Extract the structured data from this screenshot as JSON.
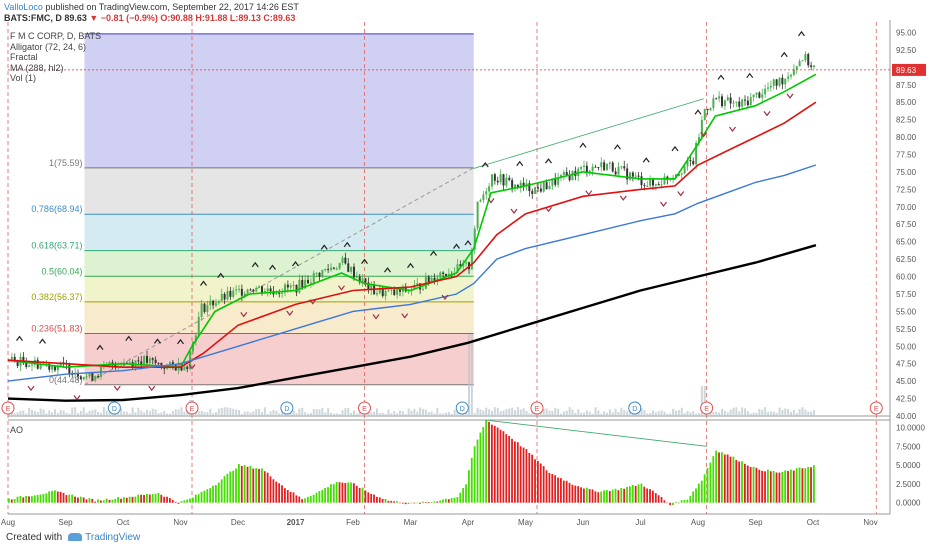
{
  "header": {
    "author": "ValloLoco",
    "published_text": "published on TradingView.com, September 22, 2017 14:26 EST",
    "symbol": "BATS:FMC, D",
    "last": "89.63",
    "change": "▼ −0.81 (−0.9%)",
    "ohlc": "O:90.88 H:91.88 L:89.13 C:89.63"
  },
  "legend": {
    "symbol_line": "F M C CORP, D, BATS",
    "studies": [
      "Alligator (72, 24, 6)",
      "Fractal",
      "MA (288, hl2)",
      "Vol (1)"
    ]
  },
  "ao_label": "AO",
  "footer": {
    "created_with": "Created with",
    "brand": "TradingView"
  },
  "colors": {
    "candle_up": "#4caf50",
    "candle_down": "#333333",
    "lips": "#00c800",
    "teeth": "#e01010",
    "jaw": "#3c78d8",
    "ma": "#000000",
    "ao_up": "#44dd00",
    "ao_down": "#e02020",
    "price_tag": "#e03030"
  },
  "chart_data": [
    {
      "type": "candlestick",
      "title": "BATS:FMC, D",
      "ylim": [
        40,
        96.5
      ],
      "y_ticks": [
        "95.00",
        "92.50",
        "90.00",
        "87.50",
        "85.00",
        "82.50",
        "80.00",
        "77.50",
        "75.00",
        "72.50",
        "70.00",
        "67.50",
        "65.00",
        "62.50",
        "60.00",
        "57.50",
        "55.00",
        "52.50",
        "50.00",
        "47.50",
        "45.00",
        "42.50",
        "40.00"
      ],
      "last_price_label": "89.63",
      "x_labels": [
        "Aug",
        "Sep",
        "Oct",
        "Nov",
        "Dec",
        "2017",
        "Feb",
        "Mar",
        "Apr",
        "May",
        "Jun",
        "Jul",
        "Aug",
        "Sep",
        "Oct",
        "Nov"
      ],
      "earnings_markers": [
        {
          "month_index": 0,
          "label": "E"
        },
        {
          "month_index": 3.2,
          "label": "E"
        },
        {
          "month_index": 6.2,
          "label": "E"
        },
        {
          "month_index": 9.2,
          "label": "E"
        },
        {
          "month_index": 12.15,
          "label": "E"
        },
        {
          "month_index": 15.1,
          "label": "E"
        }
      ],
      "dividend_markers": [
        {
          "month_index": 1.85,
          "label": "D"
        },
        {
          "month_index": 4.85,
          "label": "D"
        },
        {
          "month_index": 7.9,
          "label": "D"
        },
        {
          "month_index": 10.9,
          "label": "D"
        }
      ],
      "fibonacci": [
        {
          "level": "0",
          "price": 44.48,
          "label": "0(44.48)"
        },
        {
          "level": "0.236",
          "price": 51.83,
          "label": "0.236(51.83)"
        },
        {
          "level": "0.382",
          "price": 56.37,
          "label": "0.382(56.37)"
        },
        {
          "level": "0.5",
          "price": 60.04,
          "label": "0.5(60.04)"
        },
        {
          "level": "0.618",
          "price": 63.71,
          "label": "0.618(63.71)"
        },
        {
          "level": "0.786",
          "price": 68.94,
          "label": "0.786(68.94)"
        },
        {
          "level": "1",
          "price": 75.59,
          "label": "1(75.59)"
        },
        {
          "level": "1.618",
          "price": 94.8,
          "label": ""
        }
      ],
      "fib_range_months": [
        1.33,
        8.1
      ],
      "close_series": {
        "months": [
          0,
          0.5,
          1,
          1.4,
          1.8,
          2.3,
          2.8,
          3.1,
          3.35,
          3.6,
          3.9,
          4.2,
          4.6,
          5.0,
          5.4,
          5.8,
          6.0,
          6.3,
          6.7,
          7.1,
          7.5,
          7.8,
          8.0,
          8.15,
          8.4,
          8.8,
          9.2,
          9.6,
          10.0,
          10.4,
          10.8,
          11.2,
          11.6,
          11.9,
          12.1,
          12.3,
          12.7,
          13.1,
          13.5,
          13.8,
          14.05
        ],
        "values": [
          48.0,
          47.5,
          47.0,
          45.5,
          47.5,
          48.0,
          47.0,
          47.5,
          55.5,
          56.5,
          57.5,
          58.5,
          58.0,
          58.5,
          60.5,
          62.0,
          60.5,
          58.0,
          57.5,
          58.5,
          60.5,
          61.0,
          61.5,
          70.0,
          74.5,
          73.0,
          72.5,
          74.0,
          75.5,
          76.0,
          74.5,
          73.0,
          75.0,
          76.5,
          84.0,
          85.5,
          84.5,
          86.5,
          88.5,
          91.5,
          89.63
        ]
      },
      "series": [
        {
          "name": "Alligator lips",
          "months": [
            0,
            1,
            2,
            3,
            3.2,
            3.6,
            4.2,
            5,
            5.8,
            6.2,
            7,
            7.8,
            8.1,
            8.4,
            9,
            10,
            11,
            11.6,
            12,
            12.3,
            13,
            13.5,
            14.05
          ],
          "values": [
            48,
            47,
            47.5,
            47,
            50,
            55,
            57.5,
            58,
            60.5,
            59,
            58,
            60.5,
            64,
            72,
            73,
            75,
            74,
            74,
            79,
            83,
            84.5,
            86.5,
            89
          ]
        },
        {
          "name": "Alligator teeth",
          "months": [
            0,
            1,
            2,
            3,
            3.4,
            4,
            5,
            6,
            7,
            7.8,
            8.1,
            8.5,
            9,
            10,
            11,
            11.6,
            12,
            12.5,
            13,
            13.5,
            14.05
          ],
          "values": [
            48,
            47.5,
            47,
            47,
            49,
            53,
            56,
            58,
            58.5,
            60,
            62,
            66,
            69,
            71.5,
            72.5,
            73,
            76,
            78,
            80,
            82,
            85
          ]
        },
        {
          "name": "Alligator jaw",
          "months": [
            0,
            1,
            2,
            3,
            4,
            5,
            6,
            7,
            7.8,
            8.1,
            8.5,
            9,
            10,
            11,
            11.6,
            12,
            12.5,
            13,
            13.5,
            14.05
          ],
          "values": [
            45,
            46,
            46.5,
            47.5,
            50,
            52.5,
            55,
            56,
            57.5,
            59,
            62.5,
            64,
            66,
            68,
            69,
            70.5,
            72,
            73.5,
            74.5,
            76
          ]
        },
        {
          "name": "MA (288, hl2)",
          "months": [
            0,
            1,
            2,
            3,
            4,
            5,
            6,
            7,
            8,
            9,
            10,
            11,
            12,
            13,
            14.05
          ],
          "values": [
            42.5,
            42.2,
            42.3,
            43,
            44,
            45.5,
            47,
            48.5,
            50.5,
            53,
            55.5,
            58,
            60,
            62,
            64.5
          ]
        }
      ],
      "fractals_up_months": [
        0.2,
        0.6,
        1.6,
        2.1,
        2.6,
        3.0,
        3.4,
        3.7,
        4.3,
        4.6,
        5.0,
        5.5,
        5.9,
        6.2,
        6.6,
        7.0,
        7.4,
        7.8,
        8.0,
        8.3,
        8.9,
        9.4,
        10.0,
        10.6,
        11.1,
        11.6,
        12.0,
        12.4,
        12.9,
        13.5,
        13.8
      ],
      "fractals_down_months": [
        0.4,
        1.2,
        1.9,
        2.5,
        3.2,
        4.1,
        4.9,
        5.3,
        5.8,
        6.4,
        6.9,
        7.6,
        8.4,
        8.8,
        9.4,
        10.1,
        10.7,
        11.4,
        11.7,
        12.1,
        12.6,
        13.2,
        13.6
      ]
    },
    {
      "type": "bar",
      "title": "AO",
      "ylim": [
        -1.5,
        11
      ],
      "y_ticks": [
        "10.0000",
        "7.5000",
        "5.0000",
        "2.5000",
        "0.0000"
      ],
      "months": [
        0,
        0.8,
        1.5,
        2.1,
        2.6,
        2.95,
        3.15,
        3.6,
        4.0,
        4.4,
        4.8,
        5.1,
        5.4,
        5.7,
        6.0,
        6.3,
        6.6,
        7.0,
        7.4,
        7.8,
        7.95,
        8.1,
        8.3,
        8.6,
        9.0,
        9.4,
        9.8,
        10.2,
        10.6,
        11.0,
        11.3,
        11.5,
        11.8,
        12.05,
        12.3,
        12.6,
        13.0,
        13.4,
        14.05
      ],
      "values": [
        0.5,
        1.5,
        0.3,
        0.8,
        1.3,
        0.0,
        0.5,
        2.5,
        5.0,
        4.5,
        2.0,
        0.5,
        1.5,
        2.8,
        2.5,
        1.2,
        0.3,
        -0.2,
        0.2,
        0.8,
        2.5,
        7.5,
        11.0,
        9.5,
        7.0,
        4.0,
        2.5,
        1.5,
        1.8,
        2.5,
        1.0,
        -0.3,
        0.5,
        3.0,
        7.0,
        6.0,
        4.5,
        4.0,
        5.0
      ],
      "divergence_line_months": [
        8.3,
        12.15
      ],
      "divergence_line_values": [
        11.0,
        7.5
      ]
    }
  ]
}
